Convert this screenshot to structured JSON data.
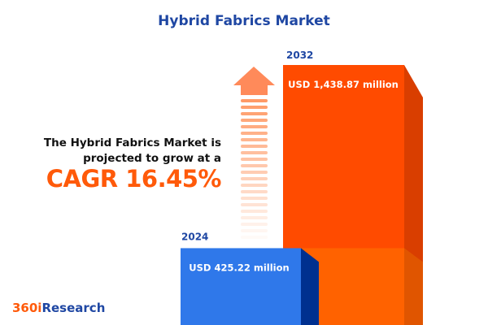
{
  "title": "Hybrid Fabrics Market",
  "lead_text": [
    "The Hybrid Fabrics Market is",
    "projected to grow at a"
  ],
  "cagr_text": "CAGR 16.45%",
  "logo": {
    "part1": "360i",
    "part2": "Research"
  },
  "colors": {
    "accent": "#ff5a0a",
    "brand_blue": "#1f47a3",
    "bar_2024": "#2f78ea",
    "bar_2032": "#ff4b00"
  },
  "chart_data": {
    "type": "bar",
    "categories": [
      "2024",
      "2032"
    ],
    "values": [
      425.22,
      1438.87
    ],
    "value_labels": [
      "USD 425.22 million",
      "USD 1,438.87 million"
    ],
    "unit": "USD million",
    "cagr_percent": 16.45,
    "title": "Hybrid Fabrics Market"
  }
}
